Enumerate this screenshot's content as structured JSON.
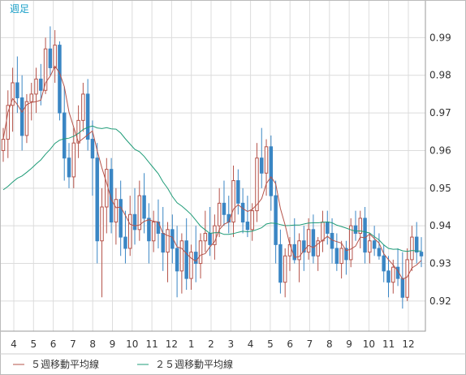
{
  "chart_data": {
    "type": "candlestick",
    "period_label": "週足",
    "y_ticks": [
      0.92,
      0.93,
      0.94,
      0.95,
      0.96,
      0.97,
      0.98,
      0.99
    ],
    "ylim": [
      0.912,
      1.0
    ],
    "x_ticks": [
      "4",
      "5",
      "6",
      "7",
      "8",
      "9",
      "10",
      "11",
      "12",
      "1",
      "2",
      "3",
      "4",
      "5",
      "6",
      "7",
      "8",
      "9",
      "10",
      "11",
      "12"
    ],
    "grid": true,
    "legend_position": "bottom-left",
    "legend": [
      {
        "label": "５週移動平均線",
        "color": "#b5534a"
      },
      {
        "label": "２５週移動平均線",
        "color": "#1f9c78"
      }
    ],
    "colors": {
      "up": "#b5534a",
      "down": "#3a86c4",
      "ma5": "#b5534a",
      "ma25": "#1f9c78",
      "grid": "#dcdcdc"
    },
    "candles": [
      [
        0.96,
        0.966,
        0.957,
        0.963
      ],
      [
        0.963,
        0.976,
        0.958,
        0.972
      ],
      [
        0.972,
        0.982,
        0.965,
        0.978
      ],
      [
        0.978,
        0.985,
        0.97,
        0.974
      ],
      [
        0.974,
        0.98,
        0.96,
        0.964
      ],
      [
        0.964,
        0.975,
        0.962,
        0.973
      ],
      [
        0.973,
        0.978,
        0.968,
        0.975
      ],
      [
        0.975,
        0.982,
        0.97,
        0.979
      ],
      [
        0.979,
        0.983,
        0.972,
        0.976
      ],
      [
        0.976,
        0.99,
        0.975,
        0.987
      ],
      [
        0.987,
        0.993,
        0.98,
        0.982
      ],
      [
        0.982,
        0.992,
        0.978,
        0.988
      ],
      [
        0.988,
        0.989,
        0.968,
        0.97
      ],
      [
        0.97,
        0.977,
        0.952,
        0.958
      ],
      [
        0.958,
        0.962,
        0.95,
        0.953
      ],
      [
        0.953,
        0.966,
        0.95,
        0.962
      ],
      [
        0.962,
        0.972,
        0.958,
        0.968
      ],
      [
        0.968,
        0.978,
        0.965,
        0.975
      ],
      [
        0.975,
        0.979,
        0.96,
        0.963
      ],
      [
        0.963,
        0.968,
        0.948,
        0.958
      ],
      [
        0.958,
        0.962,
        0.93,
        0.936
      ],
      [
        0.936,
        0.95,
        0.921,
        0.945
      ],
      [
        0.945,
        0.958,
        0.938,
        0.955
      ],
      [
        0.955,
        0.958,
        0.938,
        0.941
      ],
      [
        0.941,
        0.95,
        0.935,
        0.947
      ],
      [
        0.947,
        0.952,
        0.932,
        0.937
      ],
      [
        0.937,
        0.944,
        0.93,
        0.934
      ],
      [
        0.934,
        0.948,
        0.932,
        0.943
      ],
      [
        0.943,
        0.95,
        0.935,
        0.939
      ],
      [
        0.939,
        0.952,
        0.936,
        0.948
      ],
      [
        0.948,
        0.954,
        0.938,
        0.942
      ],
      [
        0.942,
        0.946,
        0.93,
        0.936
      ],
      [
        0.936,
        0.944,
        0.933,
        0.941
      ],
      [
        0.941,
        0.947,
        0.934,
        0.938
      ],
      [
        0.938,
        0.945,
        0.928,
        0.933
      ],
      [
        0.933,
        0.941,
        0.925,
        0.939
      ],
      [
        0.939,
        0.943,
        0.93,
        0.934
      ],
      [
        0.934,
        0.94,
        0.921,
        0.928
      ],
      [
        0.928,
        0.938,
        0.922,
        0.936
      ],
      [
        0.936,
        0.942,
        0.923,
        0.926
      ],
      [
        0.926,
        0.935,
        0.923,
        0.933
      ],
      [
        0.933,
        0.94,
        0.925,
        0.93
      ],
      [
        0.93,
        0.938,
        0.926,
        0.936
      ],
      [
        0.936,
        0.944,
        0.933,
        0.938
      ],
      [
        0.938,
        0.945,
        0.932,
        0.935
      ],
      [
        0.935,
        0.943,
        0.931,
        0.94
      ],
      [
        0.94,
        0.95,
        0.937,
        0.946
      ],
      [
        0.946,
        0.952,
        0.94,
        0.943
      ],
      [
        0.943,
        0.948,
        0.938,
        0.941
      ],
      [
        0.941,
        0.956,
        0.937,
        0.952
      ],
      [
        0.952,
        0.955,
        0.943,
        0.946
      ],
      [
        0.946,
        0.95,
        0.938,
        0.941
      ],
      [
        0.941,
        0.948,
        0.937,
        0.939
      ],
      [
        0.939,
        0.946,
        0.936,
        0.944
      ],
      [
        0.944,
        0.962,
        0.941,
        0.958
      ],
      [
        0.958,
        0.966,
        0.95,
        0.954
      ],
      [
        0.954,
        0.963,
        0.948,
        0.961
      ],
      [
        0.961,
        0.964,
        0.944,
        0.948
      ],
      [
        0.948,
        0.952,
        0.93,
        0.935
      ],
      [
        0.935,
        0.939,
        0.922,
        0.925
      ],
      [
        0.925,
        0.934,
        0.921,
        0.932
      ],
      [
        0.932,
        0.937,
        0.928,
        0.935
      ],
      [
        0.935,
        0.942,
        0.93,
        0.931
      ],
      [
        0.931,
        0.938,
        0.925,
        0.936
      ],
      [
        0.936,
        0.94,
        0.928,
        0.933
      ],
      [
        0.933,
        0.942,
        0.931,
        0.939
      ],
      [
        0.939,
        0.943,
        0.93,
        0.932
      ],
      [
        0.932,
        0.937,
        0.928,
        0.936
      ],
      [
        0.936,
        0.944,
        0.933,
        0.941
      ],
      [
        0.941,
        0.944,
        0.935,
        0.938
      ],
      [
        0.938,
        0.942,
        0.93,
        0.934
      ],
      [
        0.934,
        0.938,
        0.928,
        0.93
      ],
      [
        0.93,
        0.936,
        0.926,
        0.934
      ],
      [
        0.934,
        0.936,
        0.927,
        0.931
      ],
      [
        0.931,
        0.942,
        0.929,
        0.94
      ],
      [
        0.94,
        0.944,
        0.936,
        0.938
      ],
      [
        0.938,
        0.944,
        0.934,
        0.942
      ],
      [
        0.942,
        0.945,
        0.93,
        0.933
      ],
      [
        0.933,
        0.938,
        0.93,
        0.936
      ],
      [
        0.936,
        0.94,
        0.932,
        0.934
      ],
      [
        0.934,
        0.938,
        0.931,
        0.932
      ],
      [
        0.932,
        0.935,
        0.925,
        0.928
      ],
      [
        0.928,
        0.932,
        0.921,
        0.925
      ],
      [
        0.925,
        0.931,
        0.922,
        0.929
      ],
      [
        0.929,
        0.934,
        0.924,
        0.926
      ],
      [
        0.926,
        0.933,
        0.918,
        0.921
      ],
      [
        0.921,
        0.934,
        0.92,
        0.931
      ],
      [
        0.931,
        0.94,
        0.928,
        0.937
      ],
      [
        0.937,
        0.941,
        0.93,
        0.933
      ],
      [
        0.933,
        0.937,
        0.929,
        0.932
      ]
    ]
  }
}
